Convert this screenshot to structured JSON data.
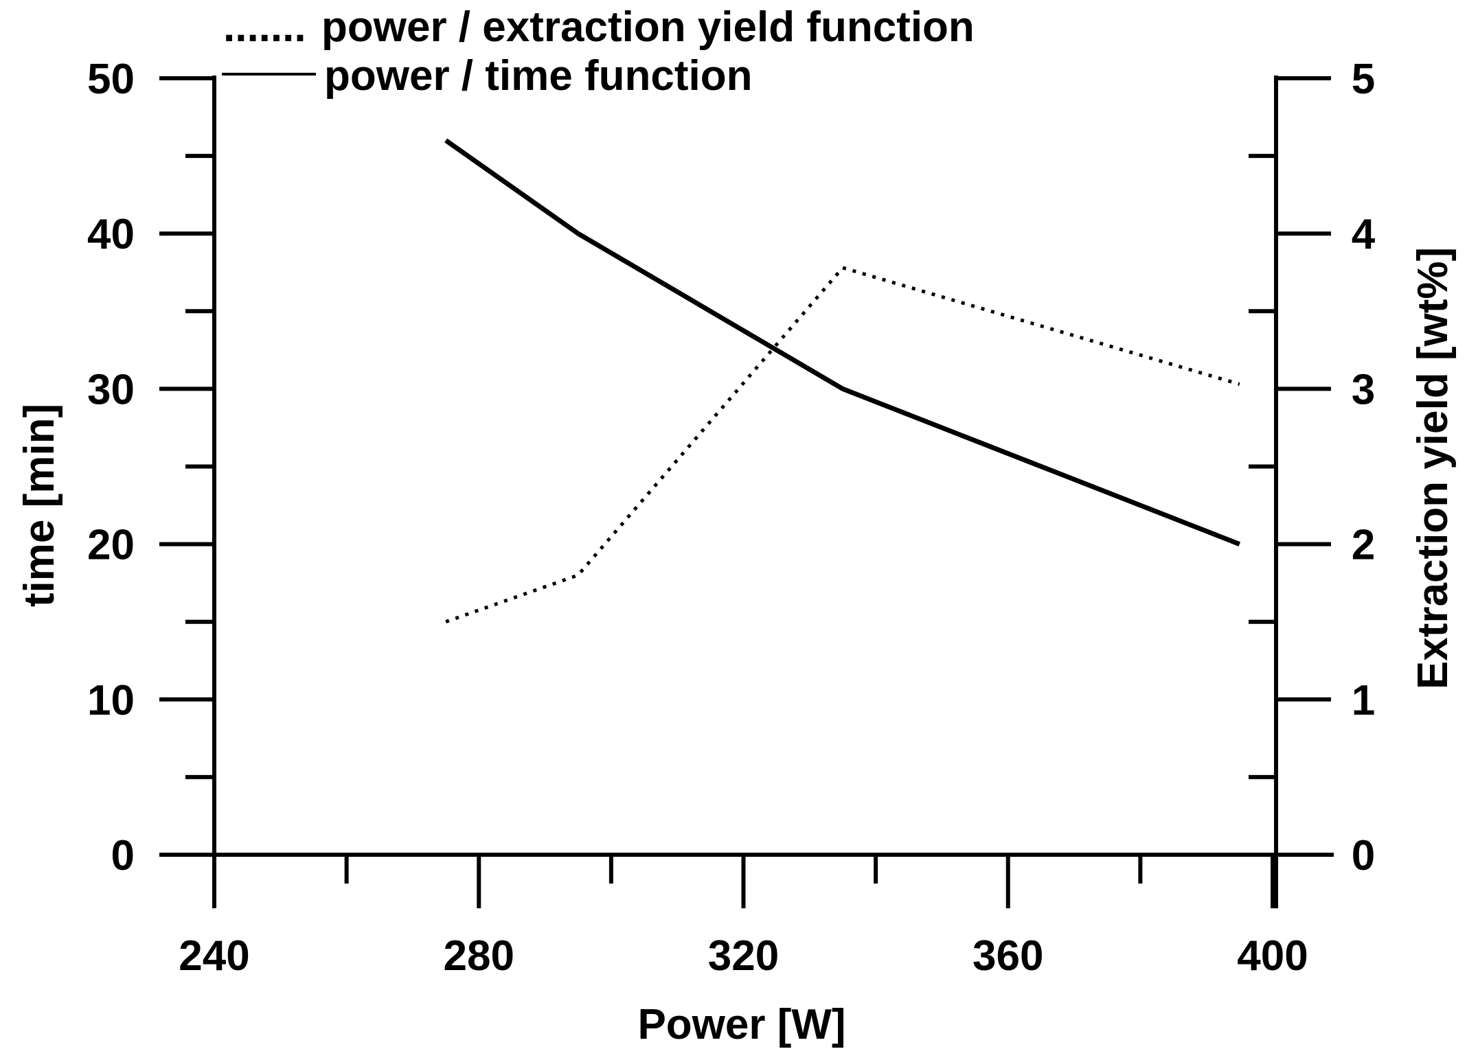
{
  "colors": {
    "background": "#ffffff",
    "ink": "#000000"
  },
  "chart_data": {
    "type": "line",
    "title": "",
    "xlabel": "Power [W]",
    "ylabel": "time [min]",
    "y2label": "Extraction yield [wt%]",
    "xlim": [
      240,
      400
    ],
    "ylim": [
      0,
      50
    ],
    "y2lim": [
      0,
      5
    ],
    "x_ticks": [
      240,
      280,
      320,
      360,
      400
    ],
    "x_minor_ticks": [
      260,
      300,
      340,
      380
    ],
    "y_ticks": [
      0,
      10,
      20,
      30,
      40,
      50
    ],
    "y_minor_ticks": [
      5,
      15,
      25,
      35,
      45
    ],
    "y2_ticks": [
      0,
      1,
      2,
      3,
      4,
      5
    ],
    "y2_minor_ticks": [
      0.5,
      1.5,
      2.5,
      3.5,
      4.5
    ],
    "x_tick_labels": [
      "240",
      "280",
      "320",
      "360",
      "400"
    ],
    "y_tick_labels": [
      "0",
      "10",
      "20",
      "30",
      "40",
      "50"
    ],
    "y2_tick_labels": [
      "0",
      "1",
      "2",
      "3",
      "4",
      "5"
    ],
    "grid": false,
    "legend_position": "top-left",
    "series": [
      {
        "name": "power / extraction yield function",
        "legend_marker": ".......",
        "axis": "right",
        "style": "dotted",
        "x": [
          275,
          295,
          335,
          395
        ],
        "values": [
          1.5,
          1.8,
          3.78,
          3.03
        ]
      },
      {
        "name": "power / time function",
        "axis": "left",
        "style": "solid",
        "x": [
          275,
          295,
          335,
          395
        ],
        "values": [
          46,
          40,
          30,
          20
        ]
      }
    ]
  }
}
